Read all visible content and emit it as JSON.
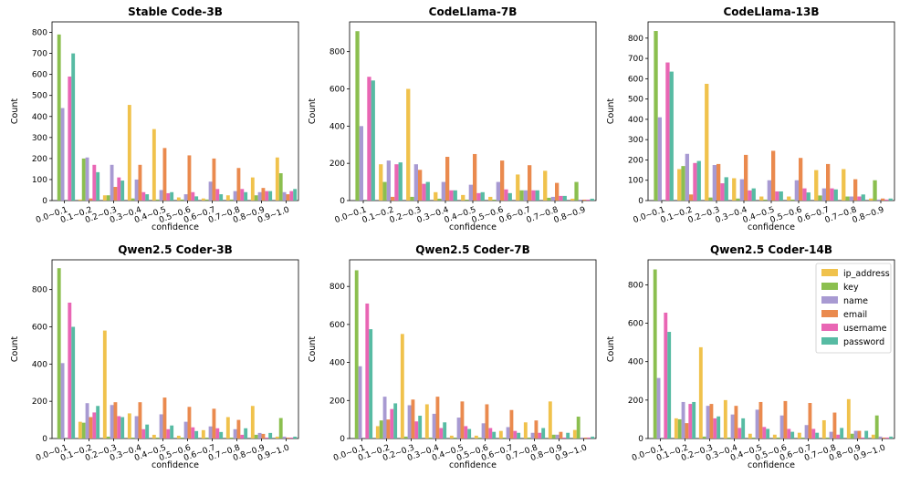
{
  "chart_data": [
    {
      "type": "bar",
      "title": "Stable Code-3B",
      "xlabel": "confidence",
      "ylabel": "Count",
      "ylim": [
        0,
        850
      ],
      "yticks": [
        0,
        100,
        200,
        300,
        400,
        500,
        600,
        700,
        800
      ],
      "categories": [
        "0.0~0.1",
        "0.1~0.2",
        "0.2~0.3",
        "0.3~0.4",
        "0.4~0.5",
        "0.5~0.6",
        "0.6~0.7",
        "0.7~0.8",
        "0.8~0.9",
        "0.9~1.0"
      ],
      "series": [
        {
          "name": "ip_address",
          "values": [
            0,
            5,
            25,
            455,
            340,
            15,
            10,
            25,
            110,
            205
          ]
        },
        {
          "name": "key",
          "values": [
            790,
            200,
            25,
            10,
            5,
            5,
            5,
            5,
            25,
            130
          ]
        },
        {
          "name": "name",
          "values": [
            440,
            205,
            170,
            100,
            50,
            30,
            90,
            45,
            40,
            40
          ]
        },
        {
          "name": "email",
          "values": [
            0,
            10,
            65,
            170,
            250,
            215,
            200,
            155,
            60,
            30
          ]
        },
        {
          "name": "username",
          "values": [
            590,
            170,
            110,
            40,
            35,
            40,
            55,
            55,
            45,
            45
          ]
        },
        {
          "name": "password",
          "values": [
            700,
            135,
            95,
            30,
            40,
            20,
            30,
            40,
            45,
            55
          ]
        }
      ]
    },
    {
      "type": "bar",
      "title": "CodeLlama-7B",
      "xlabel": "confidence",
      "ylabel": "Count",
      "ylim": [
        0,
        960
      ],
      "yticks": [
        0,
        200,
        400,
        600,
        800
      ],
      "categories": [
        "0.0~0.1",
        "0.1~0.2",
        "0.2~0.3",
        "0.3~0.4",
        "0.4~0.5",
        "0.5~0.6",
        "0.6~0.7",
        "0.7~0.8",
        "0.8~0.9"
      ],
      "series": [
        {
          "name": "ip_address",
          "values": [
            0,
            195,
            600,
            45,
            30,
            20,
            140,
            160,
            10
          ]
        },
        {
          "name": "key",
          "values": [
            910,
            100,
            20,
            10,
            5,
            5,
            55,
            15,
            100
          ]
        },
        {
          "name": "name",
          "values": [
            400,
            215,
            195,
            100,
            85,
            100,
            55,
            20,
            5
          ]
        },
        {
          "name": "email",
          "values": [
            0,
            20,
            165,
            235,
            250,
            215,
            190,
            95,
            5
          ]
        },
        {
          "name": "username",
          "values": [
            665,
            195,
            90,
            55,
            40,
            60,
            55,
            25,
            5
          ]
        },
        {
          "name": "password",
          "values": [
            645,
            205,
            100,
            55,
            45,
            40,
            55,
            25,
            10
          ]
        }
      ]
    },
    {
      "type": "bar",
      "title": "CodeLlama-13B",
      "xlabel": "confidence",
      "ylabel": "Count",
      "ylim": [
        0,
        880
      ],
      "yticks": [
        0,
        100,
        200,
        300,
        400,
        500,
        600,
        700,
        800
      ],
      "categories": [
        "0.0~0.1",
        "0.1~0.2",
        "0.2~0.3",
        "0.3~0.4",
        "0.4~0.5",
        "0.5~0.6",
        "0.6~0.7",
        "0.7~0.8",
        "0.8~0.9"
      ],
      "series": [
        {
          "name": "ip_address",
          "values": [
            0,
            155,
            575,
            110,
            20,
            20,
            150,
            155,
            10
          ]
        },
        {
          "name": "key",
          "values": [
            835,
            170,
            15,
            10,
            5,
            5,
            25,
            20,
            100
          ]
        },
        {
          "name": "name",
          "values": [
            410,
            230,
            175,
            105,
            100,
            100,
            60,
            20,
            5
          ]
        },
        {
          "name": "email",
          "values": [
            0,
            30,
            180,
            225,
            245,
            210,
            180,
            105,
            10
          ]
        },
        {
          "name": "username",
          "values": [
            680,
            185,
            85,
            50,
            45,
            60,
            60,
            20,
            5
          ]
        },
        {
          "name": "password",
          "values": [
            635,
            195,
            115,
            60,
            45,
            40,
            55,
            30,
            10
          ]
        }
      ]
    },
    {
      "type": "bar",
      "title": "Qwen2.5 Coder-3B",
      "xlabel": "confidence",
      "ylabel": "Count",
      "ylim": [
        0,
        960
      ],
      "yticks": [
        0,
        200,
        400,
        600,
        800
      ],
      "categories": [
        "0.0~0.1",
        "0.1~0.2",
        "0.2~0.3",
        "0.3~0.4",
        "0.4~0.5",
        "0.5~0.6",
        "0.6~0.7",
        "0.7~0.8",
        "0.8~0.9",
        "0.9~1.0"
      ],
      "series": [
        {
          "name": "ip_address",
          "values": [
            0,
            90,
            580,
            135,
            20,
            15,
            45,
            115,
            175,
            10
          ]
        },
        {
          "name": "key",
          "values": [
            915,
            85,
            10,
            5,
            5,
            5,
            5,
            5,
            20,
            110
          ]
        },
        {
          "name": "name",
          "values": [
            405,
            190,
            180,
            120,
            130,
            90,
            65,
            50,
            30,
            10
          ]
        },
        {
          "name": "email",
          "values": [
            0,
            115,
            195,
            195,
            220,
            170,
            160,
            100,
            25,
            5
          ]
        },
        {
          "name": "username",
          "values": [
            730,
            140,
            120,
            50,
            50,
            60,
            55,
            20,
            5,
            5
          ]
        },
        {
          "name": "password",
          "values": [
            600,
            175,
            115,
            75,
            70,
            40,
            35,
            55,
            30,
            10
          ]
        }
      ]
    },
    {
      "type": "bar",
      "title": "Qwen2.5 Coder-7B",
      "xlabel": "confidence",
      "ylabel": "Count",
      "ylim": [
        0,
        940
      ],
      "yticks": [
        0,
        200,
        400,
        600,
        800
      ],
      "categories": [
        "0.0~0.1",
        "0.1~0.2",
        "0.2~0.3",
        "0.3~0.4",
        "0.4~0.5",
        "0.5~0.6",
        "0.6~0.7",
        "0.7~0.8",
        "0.8~0.9",
        "0.9~1.0"
      ],
      "series": [
        {
          "name": "ip_address",
          "values": [
            0,
            65,
            550,
            180,
            15,
            15,
            40,
            85,
            195,
            45
          ]
        },
        {
          "name": "key",
          "values": [
            885,
            95,
            10,
            5,
            5,
            5,
            5,
            5,
            20,
            115
          ]
        },
        {
          "name": "name",
          "values": [
            380,
            220,
            175,
            130,
            110,
            80,
            60,
            30,
            20,
            5
          ]
        },
        {
          "name": "email",
          "values": [
            0,
            100,
            205,
            220,
            195,
            180,
            150,
            95,
            35,
            5
          ]
        },
        {
          "name": "username",
          "values": [
            710,
            155,
            90,
            55,
            65,
            55,
            40,
            30,
            5,
            5
          ]
        },
        {
          "name": "password",
          "values": [
            575,
            185,
            120,
            85,
            50,
            35,
            30,
            55,
            30,
            10
          ]
        }
      ]
    },
    {
      "type": "bar",
      "title": "Qwen2.5 Coder-14B",
      "xlabel": "confidence",
      "ylabel": "Count",
      "ylim": [
        0,
        930
      ],
      "yticks": [
        0,
        200,
        400,
        600,
        800
      ],
      "categories": [
        "0.0~0.1",
        "0.1~0.2",
        "0.2~0.3",
        "0.3~0.4",
        "0.4~0.5",
        "0.5~0.6",
        "0.6~0.7",
        "0.7~0.8",
        "0.8~0.9",
        "0.9~1.0"
      ],
      "series": [
        {
          "name": "ip_address",
          "values": [
            0,
            105,
            475,
            200,
            25,
            20,
            30,
            95,
            205,
            20
          ]
        },
        {
          "name": "key",
          "values": [
            880,
            100,
            10,
            5,
            5,
            5,
            5,
            5,
            25,
            120
          ]
        },
        {
          "name": "name",
          "values": [
            315,
            190,
            170,
            125,
            150,
            120,
            70,
            35,
            40,
            10
          ]
        },
        {
          "name": "email",
          "values": [
            0,
            80,
            180,
            170,
            190,
            195,
            185,
            135,
            40,
            5
          ]
        },
        {
          "name": "username",
          "values": [
            655,
            180,
            105,
            55,
            60,
            50,
            50,
            20,
            5,
            5
          ]
        },
        {
          "name": "password",
          "values": [
            555,
            190,
            115,
            105,
            50,
            35,
            30,
            55,
            40,
            10
          ]
        }
      ]
    }
  ],
  "legend": {
    "items": [
      "ip_address",
      "key",
      "name",
      "email",
      "username",
      "password"
    ],
    "colors": [
      "#f0c24c",
      "#8bbf4f",
      "#a89ad2",
      "#ea8a4e",
      "#e966b4",
      "#57bba3"
    ],
    "placement": "upper right of Qwen2.5 Coder-14B"
  }
}
